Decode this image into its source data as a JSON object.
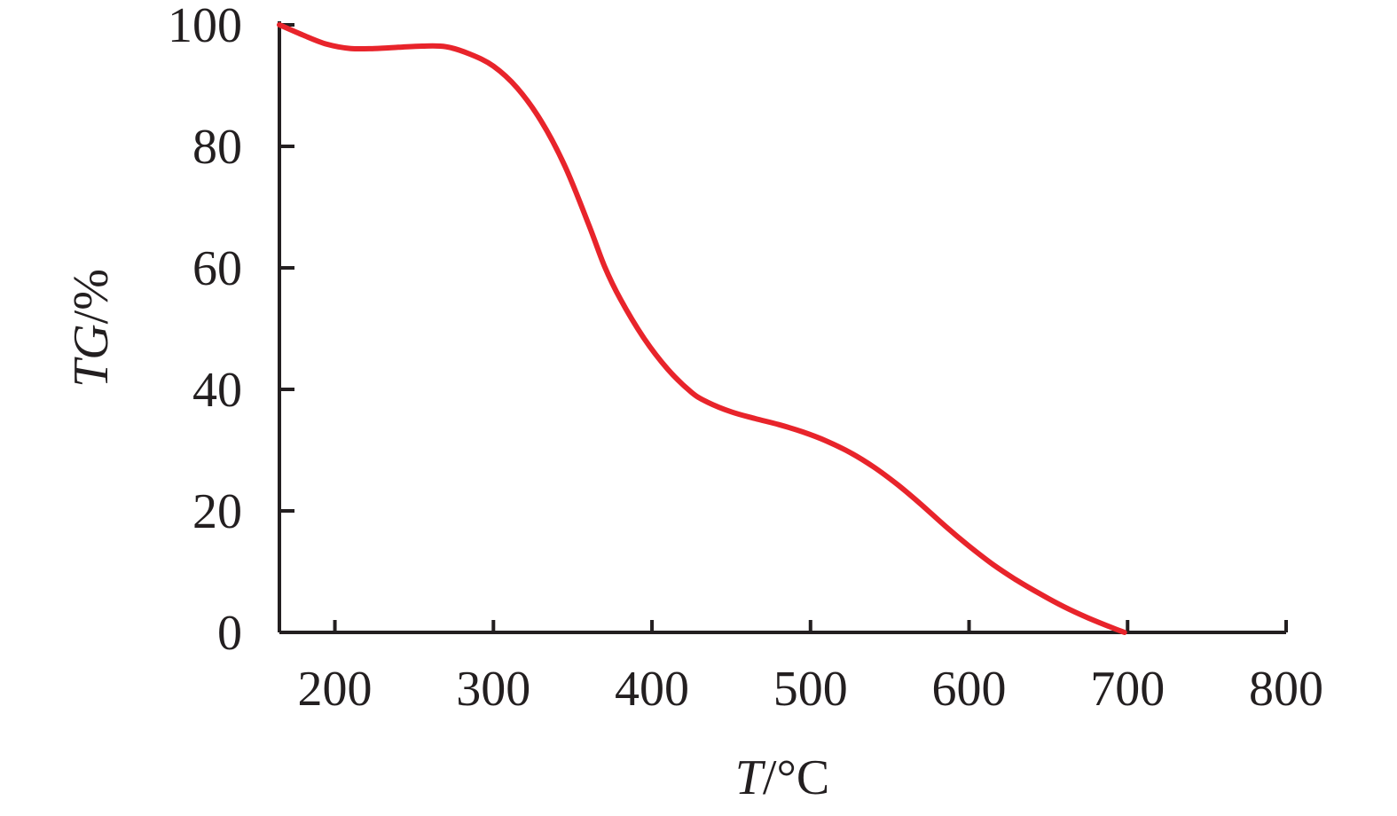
{
  "chart_data": {
    "type": "line",
    "xlabel": "T/°C",
    "xlabel_parts": {
      "var": "T",
      "unit": "/°C"
    },
    "ylabel": "TG/%",
    "ylabel_parts": {
      "var": "TG",
      "unit": "/%"
    },
    "xlim": [
      165,
      800
    ],
    "ylim": [
      0,
      100
    ],
    "xticks": [
      200,
      300,
      400,
      500,
      600,
      700,
      800
    ],
    "yticks": [
      0,
      20,
      40,
      60,
      80,
      100
    ],
    "grid": false,
    "legend": "none",
    "colors": {
      "axis": "#231f20",
      "series": "#e8242b"
    },
    "series": [
      {
        "x": [
          165,
          180,
          195,
          210,
          225,
          240,
          255,
          270,
          285,
          300,
          315,
          330,
          345,
          360,
          370,
          380,
          395,
          410,
          425,
          435,
          450,
          465,
          480,
          495,
          510,
          525,
          540,
          555,
          570,
          585,
          600,
          615,
          630,
          645,
          660,
          675,
          690,
          698
        ],
        "y": [
          100,
          98.3,
          96.8,
          96.1,
          96.1,
          96.3,
          96.5,
          96.4,
          95.2,
          93.2,
          89.6,
          84.2,
          76.8,
          67.2,
          60.3,
          54.9,
          48.4,
          43.3,
          39.5,
          37.9,
          36.3,
          35.2,
          34.2,
          33.0,
          31.5,
          29.6,
          27.2,
          24.3,
          21.0,
          17.5,
          14.2,
          11.2,
          8.6,
          6.3,
          4.2,
          2.4,
          0.8,
          0
        ]
      }
    ]
  }
}
